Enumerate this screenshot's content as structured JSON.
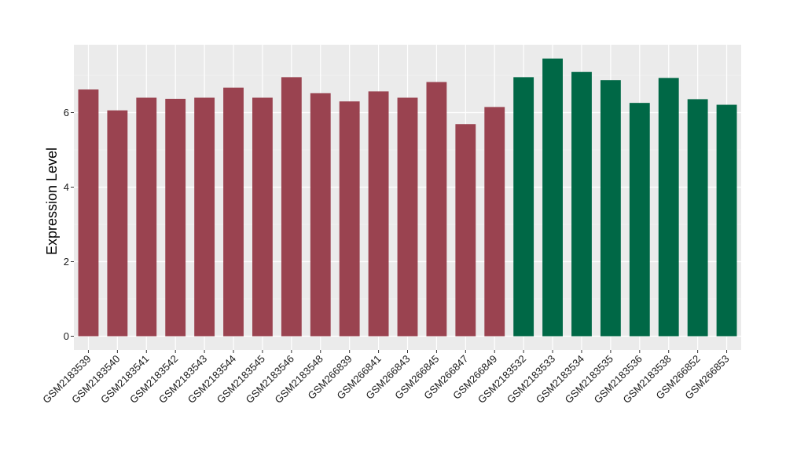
{
  "chart_data": {
    "type": "bar",
    "title": "",
    "xlabel": "",
    "ylabel": "Expression Level",
    "ylim": [
      0,
      7.8
    ],
    "yticks": [
      0,
      2,
      4,
      6
    ],
    "grid": true,
    "categories": [
      "GSM2183539",
      "GSM2183540",
      "GSM2183541",
      "GSM2183542",
      "GSM2183543",
      "GSM2183544",
      "GSM2183545",
      "GSM2183546",
      "GSM2183548",
      "GSM266839",
      "GSM266841",
      "GSM266843",
      "GSM266845",
      "GSM266847",
      "GSM266849",
      "GSM2183532",
      "GSM2183533",
      "GSM2183534",
      "GSM2183535",
      "GSM2183536",
      "GSM2183538",
      "GSM266852",
      "GSM266853"
    ],
    "values": [
      6.62,
      6.06,
      6.4,
      6.37,
      6.4,
      6.67,
      6.4,
      6.95,
      6.52,
      6.3,
      6.57,
      6.4,
      6.82,
      5.69,
      6.15,
      6.95,
      7.45,
      7.09,
      6.87,
      6.26,
      6.93,
      6.36,
      6.21
    ],
    "groups": [
      "red",
      "red",
      "red",
      "red",
      "red",
      "red",
      "red",
      "red",
      "red",
      "red",
      "red",
      "red",
      "red",
      "red",
      "red",
      "green",
      "green",
      "green",
      "green",
      "green",
      "green",
      "green",
      "green"
    ],
    "colors": {
      "red": "#9a4350",
      "green": "#006846",
      "panel": "#ebebeb",
      "grid_major": "#ffffff",
      "grid_minor": "#f5f5f5",
      "tick_text": "#1a1a1a"
    }
  }
}
